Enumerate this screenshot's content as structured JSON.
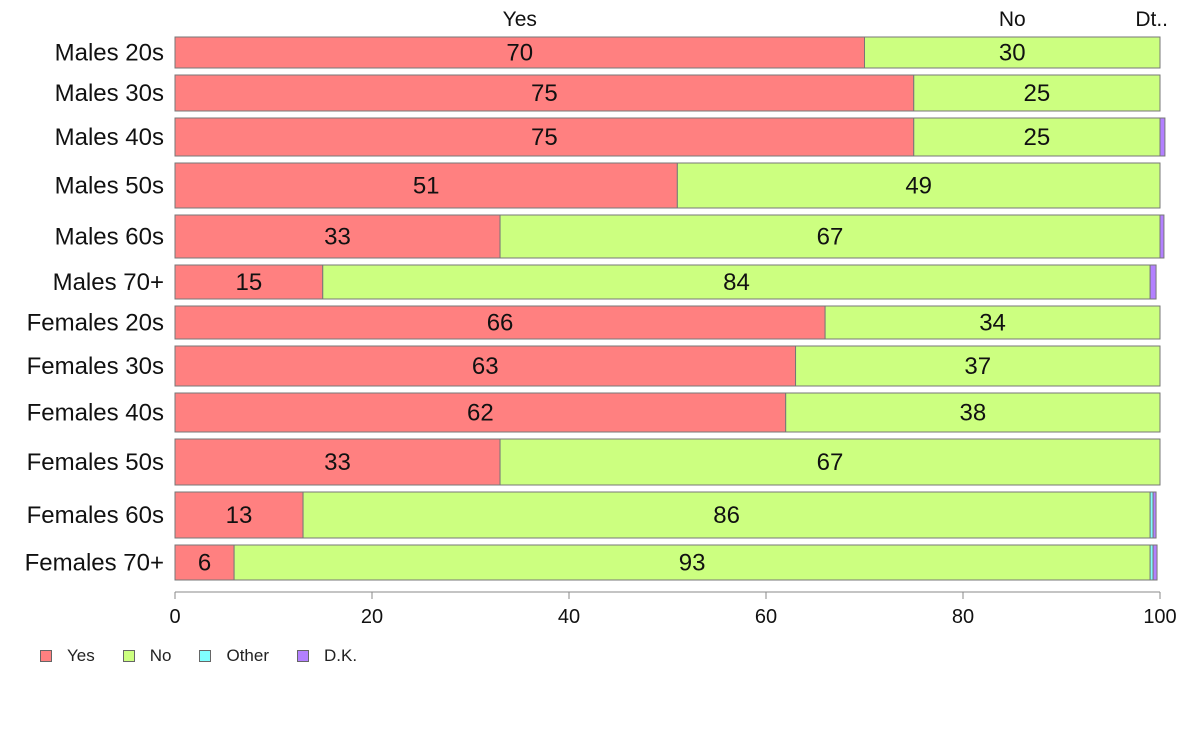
{
  "chart_data": {
    "type": "bar",
    "orientation": "horizontal",
    "stacked": true,
    "title": "",
    "xlabel": "",
    "ylabel": "",
    "xlim": [
      0,
      100
    ],
    "x_ticks": [
      0,
      20,
      40,
      60,
      80,
      100
    ],
    "grid": false,
    "legend_position": "bottom-left",
    "top_segment_labels": [
      "Yes",
      "No",
      "Dt.."
    ],
    "categories": [
      "Males 20s",
      "Males 30s",
      "Males 40s",
      "Males 50s",
      "Males 60s",
      "Males 70+",
      "Females 20s",
      "Females 30s",
      "Females 40s",
      "Females 50s",
      "Females 60s",
      "Females 70+"
    ],
    "series": [
      {
        "name": "Yes",
        "color": "#ff8080",
        "values": [
          70,
          75,
          75,
          51,
          33,
          15,
          66,
          63,
          62,
          33,
          13,
          6
        ]
      },
      {
        "name": "No",
        "color": "#ccff80",
        "values": [
          30,
          25,
          25,
          49,
          67,
          84,
          34,
          37,
          38,
          67,
          86,
          93
        ]
      },
      {
        "name": "Other",
        "color": "#80ffff",
        "values": [
          0,
          0,
          0,
          0,
          0,
          0,
          0,
          0,
          0,
          0,
          0.3,
          0.3
        ]
      },
      {
        "name": "D.K.",
        "color": "#b380ff",
        "values": [
          0,
          0,
          0.5,
          0,
          0.4,
          0.6,
          0,
          0,
          0,
          0,
          0.3,
          0.4
        ]
      }
    ],
    "data_labels": [
      [
        "70",
        "30"
      ],
      [
        "75",
        "25"
      ],
      [
        "75",
        "25"
      ],
      [
        "51",
        "49"
      ],
      [
        "33",
        "67"
      ],
      [
        "15",
        "84"
      ],
      [
        "66",
        "34"
      ],
      [
        "63",
        "37"
      ],
      [
        "62",
        "38"
      ],
      [
        "33",
        "67"
      ],
      [
        "13",
        "86"
      ],
      [
        "6",
        "93"
      ]
    ]
  }
}
